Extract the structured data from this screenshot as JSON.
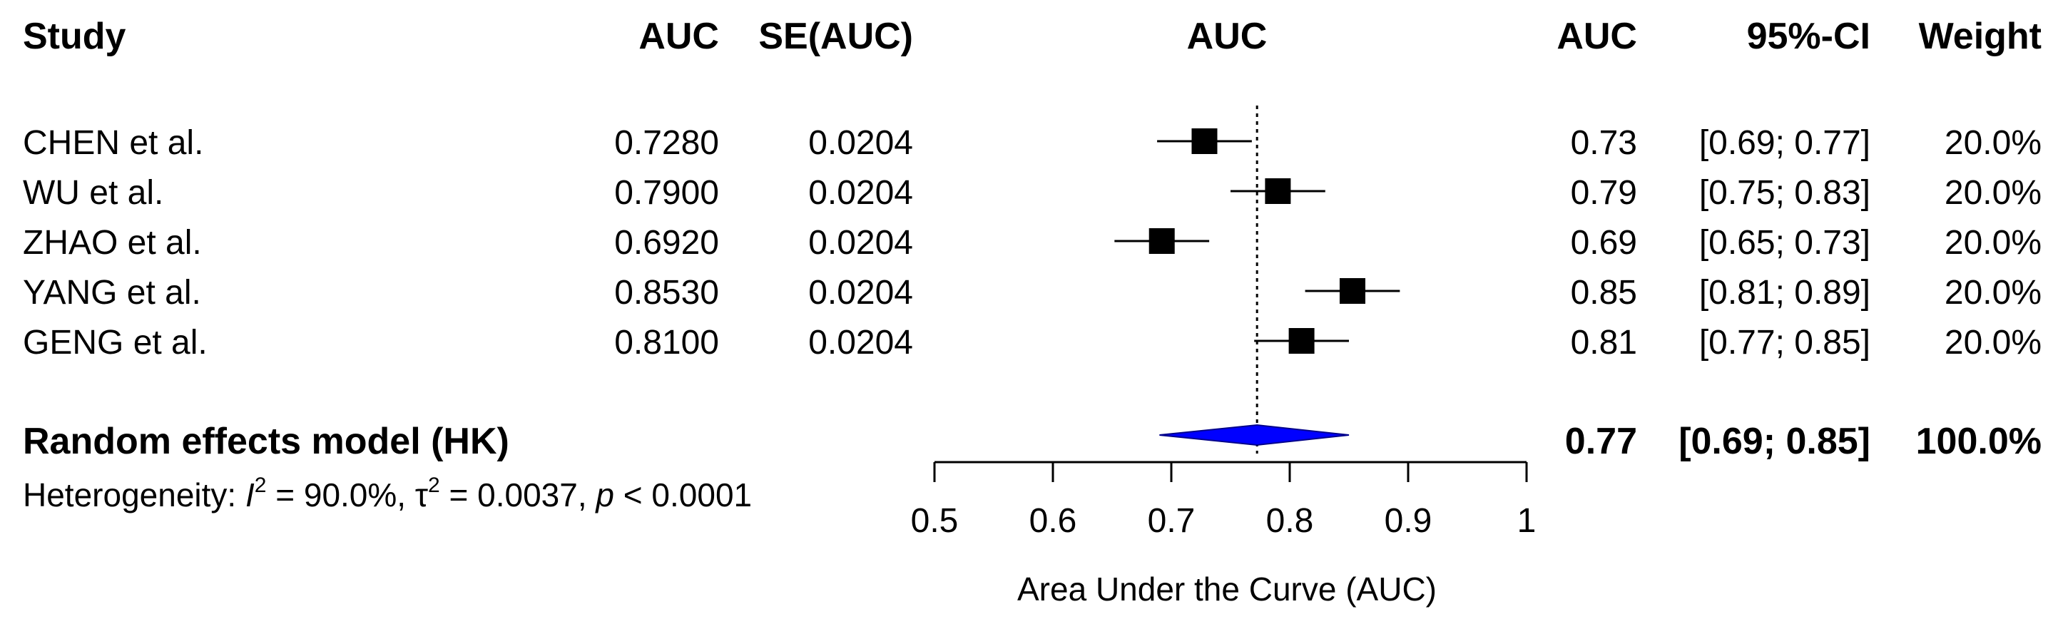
{
  "headers": {
    "study": "Study",
    "auc": "AUC",
    "se_auc": "SE(AUC)",
    "plot_title": "AUC",
    "auc_right": "AUC",
    "ci": "95%-CI",
    "weight": "Weight"
  },
  "studies": [
    {
      "name": "CHEN et al.",
      "auc": "0.7280",
      "se": "0.0204",
      "auc_short": "0.73",
      "ci_text": "[0.69; 0.77]",
      "weight": "20.0%"
    },
    {
      "name": "WU et al.",
      "auc": "0.7900",
      "se": "0.0204",
      "auc_short": "0.79",
      "ci_text": "[0.75; 0.83]",
      "weight": "20.0%"
    },
    {
      "name": "ZHAO et al.",
      "auc": "0.6920",
      "se": "0.0204",
      "auc_short": "0.69",
      "ci_text": "[0.65; 0.73]",
      "weight": "20.0%"
    },
    {
      "name": "YANG et al.",
      "auc": "0.8530",
      "se": "0.0204",
      "auc_short": "0.85",
      "ci_text": "[0.81; 0.89]",
      "weight": "20.0%"
    },
    {
      "name": "GENG et al.",
      "auc": "0.8100",
      "se": "0.0204",
      "auc_short": "0.81",
      "ci_text": "[0.77; 0.85]",
      "weight": "20.0%"
    }
  ],
  "pooled": {
    "label": "Random effects model (HK)",
    "auc_short": "0.77",
    "ci_text": "[0.69; 0.85]",
    "weight": "100.0%"
  },
  "heterogeneity": {
    "prefix": "Heterogeneity: ",
    "i2_symbol": "I",
    "sup": "2",
    "i2_value": " = 90.0%, ",
    "tau_symbol": "τ",
    "tau_value": " = 0.0037, ",
    "p_symbol": "p",
    "p_value": " < 0.0001"
  },
  "chart_data": {
    "type": "forest",
    "x_ticks": [
      "0.5",
      "0.6",
      "0.7",
      "0.8",
      "0.9",
      "1"
    ],
    "xlim": [
      0.5,
      1.0
    ],
    "xlabel": "Area Under the Curve (AUC)",
    "reference_line": 0.7724,
    "points": [
      {
        "estimate": 0.728,
        "lower": 0.688,
        "upper": 0.768
      },
      {
        "estimate": 0.79,
        "lower": 0.75,
        "upper": 0.83
      },
      {
        "estimate": 0.692,
        "lower": 0.652,
        "upper": 0.732
      },
      {
        "estimate": 0.853,
        "lower": 0.813,
        "upper": 0.893
      },
      {
        "estimate": 0.81,
        "lower": 0.77,
        "upper": 0.85
      }
    ],
    "pooled": {
      "estimate": 0.7724,
      "lower": 0.69,
      "upper": 0.85
    },
    "colors": {
      "marker": "#000000",
      "pooled_fill": "#0000ff",
      "line": "#000000"
    }
  }
}
